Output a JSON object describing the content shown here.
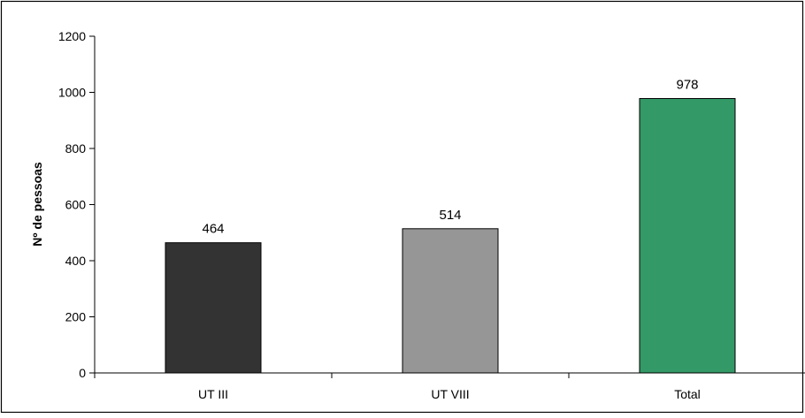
{
  "chart_data": {
    "type": "bar",
    "categories": [
      "UT III",
      "UT VIII",
      "Total"
    ],
    "values": [
      464,
      514,
      978
    ],
    "data_labels": [
      "464",
      "514",
      "978"
    ],
    "colors": [
      "#333333",
      "#969696",
      "#339966"
    ],
    "title": "",
    "xlabel": "",
    "ylabel": "Nº de pessoas",
    "ylim": [
      0,
      1200
    ],
    "yticks": [
      0,
      200,
      400,
      600,
      800,
      1000,
      1200
    ],
    "ytick_labels": [
      "0",
      "200",
      "400",
      "600",
      "800",
      "1000",
      "1200"
    ],
    "grid": false,
    "legend": "none"
  }
}
